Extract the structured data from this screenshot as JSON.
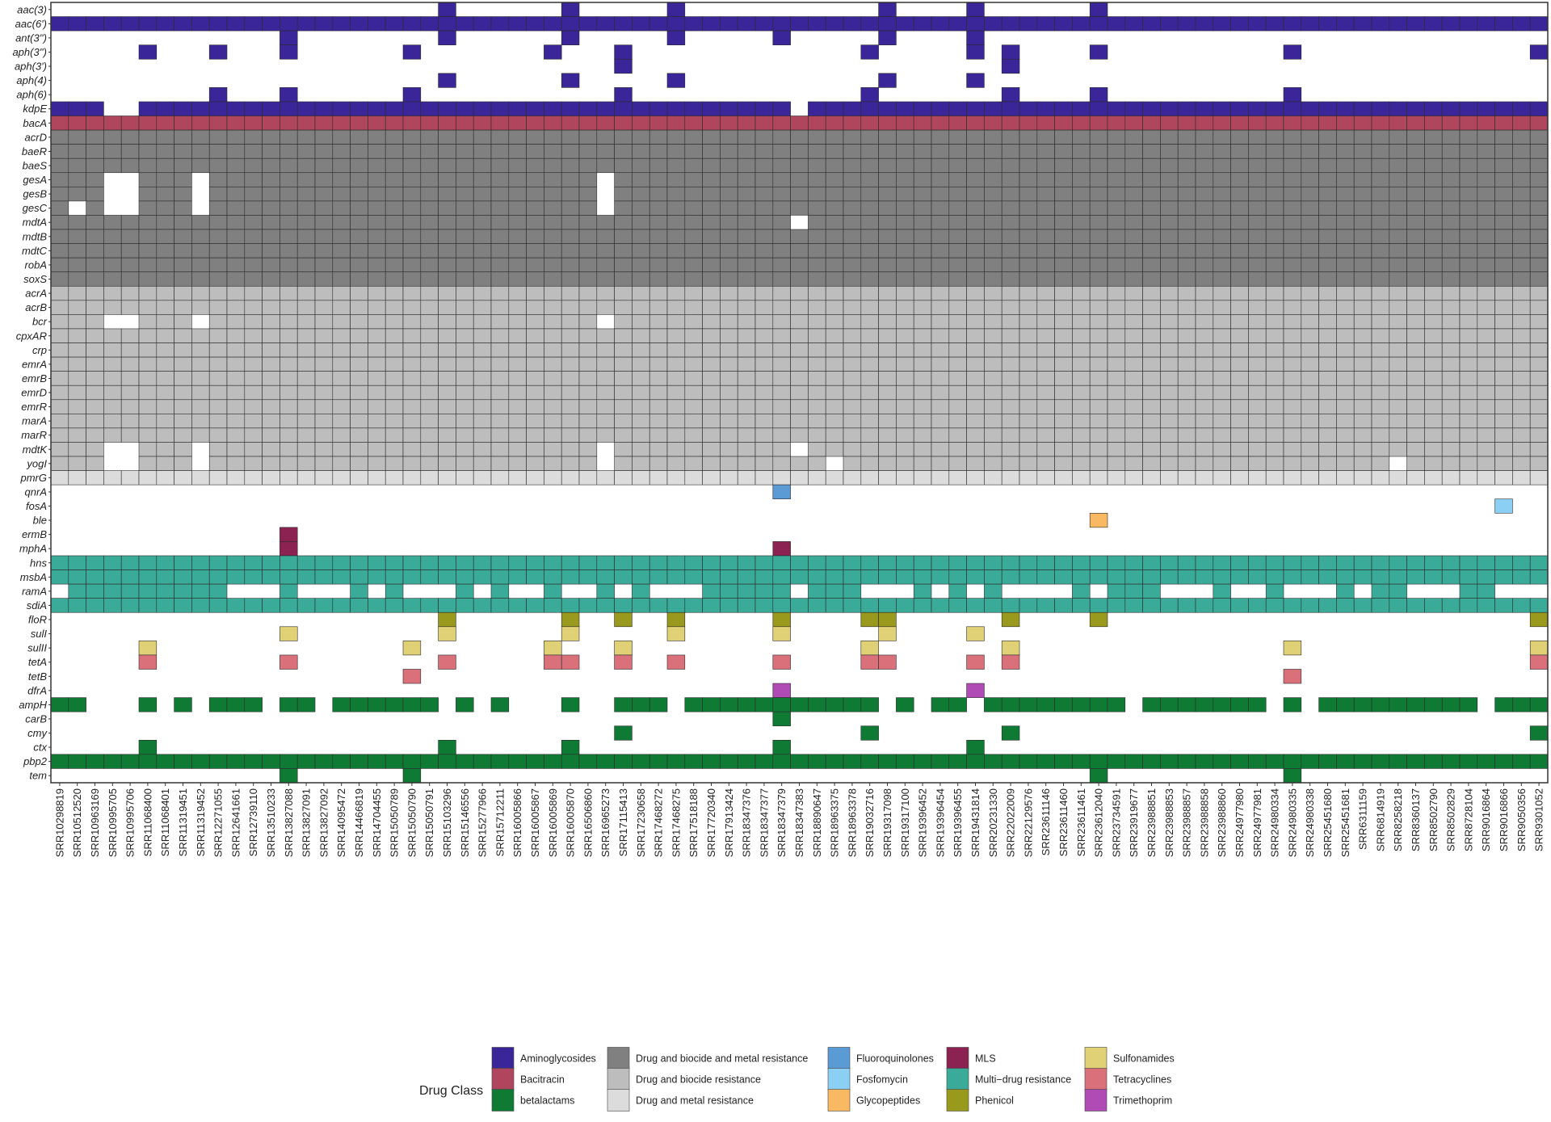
{
  "chart_data": {
    "type": "heatmap",
    "title": "",
    "xlabel": "",
    "ylabel": "",
    "grid": true,
    "samples": [
      "SRR10298819",
      "SRR10512520",
      "SRR10963169",
      "SRR10995705",
      "SRR10995706",
      "SRR11068400",
      "SRR11068401",
      "SRR11319451",
      "SRR11319452",
      "SRR12271055",
      "SRR12641661",
      "SRR12739110",
      "SRR13510233",
      "SRR13827088",
      "SRR13827091",
      "SRR13827092",
      "SRR14095472",
      "SRR14466819",
      "SRR14704455",
      "SRR15050789",
      "SRR15050790",
      "SRR15050791",
      "SRR15103296",
      "SRR15146556",
      "SRR15277966",
      "SRR15712211",
      "SRR16005866",
      "SRR16005867",
      "SRR16005869",
      "SRR16005870",
      "SRR16506860",
      "SRR16965273",
      "SRR17115413",
      "SRR17230658",
      "SRR17468272",
      "SRR17468275",
      "SRR17518188",
      "SRR17720340",
      "SRR17913424",
      "SRR18347376",
      "SRR18347377",
      "SRR18347379",
      "SRR18347383",
      "SRR18890647",
      "SRR18963375",
      "SRR18963378",
      "SRR19032716",
      "SRR19317098",
      "SRR19317100",
      "SRR19396452",
      "SRR19396454",
      "SRR19396455",
      "SRR19431814",
      "SRR20231330",
      "SRR22022009",
      "SRR22129576",
      "SRR23611146",
      "SRR23611460",
      "SRR23611461",
      "SRR23612040",
      "SRR23734591",
      "SRR23919677",
      "SRR23988851",
      "SRR23988853",
      "SRR23988857",
      "SRR23988858",
      "SRR23988860",
      "SRR24977980",
      "SRR24977981",
      "SRR24980334",
      "SRR24980335",
      "SRR24980338",
      "SRR25451680",
      "SRR25451681",
      "SRR6311159",
      "SRR6814919",
      "SRR8258218",
      "SRR8360137",
      "SRR8502790",
      "SRR8502829",
      "SRR8728104",
      "SRR9016864",
      "SRR9016866",
      "SRR9050356",
      "SRR9301052"
    ],
    "genes": [
      {
        "name": "aac(3)",
        "class": "Aminoglycosides",
        "present": [
          22,
          29,
          35,
          47,
          52,
          59
        ]
      },
      {
        "name": "aac(6')",
        "class": "Aminoglycosides",
        "present": "all"
      },
      {
        "name": "ant(3'')",
        "class": "Aminoglycosides",
        "present": [
          13,
          22,
          29,
          35,
          41,
          47,
          52
        ]
      },
      {
        "name": "aph(3'')",
        "class": "Aminoglycosides",
        "present": [
          5,
          9,
          13,
          20,
          28,
          32,
          46,
          52,
          54,
          59,
          70,
          84
        ]
      },
      {
        "name": "aph(3')",
        "class": "Aminoglycosides",
        "present": [
          32,
          54
        ]
      },
      {
        "name": "aph(4)",
        "class": "Aminoglycosides",
        "present": [
          22,
          29,
          35,
          47,
          52
        ]
      },
      {
        "name": "aph(6)",
        "class": "Aminoglycosides",
        "present": [
          9,
          13,
          20,
          32,
          46,
          54,
          59,
          70
        ]
      },
      {
        "name": "kdpE",
        "class": "Aminoglycosides",
        "present": "all",
        "absent": [
          3,
          4,
          42
        ]
      },
      {
        "name": "bacA",
        "class": "Bacitracin",
        "present": "all"
      },
      {
        "name": "acrD",
        "class": "Drug and biocide and metal resistance",
        "present": "all"
      },
      {
        "name": "baeR",
        "class": "Drug and biocide and metal resistance",
        "present": "all"
      },
      {
        "name": "baeS",
        "class": "Drug and biocide and metal resistance",
        "present": "all"
      },
      {
        "name": "gesA",
        "class": "Drug and biocide and metal resistance",
        "present": "all",
        "absent": [
          3,
          4,
          8,
          31
        ]
      },
      {
        "name": "gesB",
        "class": "Drug and biocide and metal resistance",
        "present": "all",
        "absent": [
          3,
          4,
          8,
          31
        ]
      },
      {
        "name": "gesC",
        "class": "Drug and biocide and metal resistance",
        "present": "all",
        "absent": [
          1,
          3,
          4,
          8,
          31
        ]
      },
      {
        "name": "mdtA",
        "class": "Drug and biocide and metal resistance",
        "present": "all",
        "absent": [
          42
        ]
      },
      {
        "name": "mdtB",
        "class": "Drug and biocide and metal resistance",
        "present": "all"
      },
      {
        "name": "mdtC",
        "class": "Drug and biocide and metal resistance",
        "present": "all"
      },
      {
        "name": "robA",
        "class": "Drug and biocide and metal resistance",
        "present": "all"
      },
      {
        "name": "soxS",
        "class": "Drug and biocide and metal resistance",
        "present": "all"
      },
      {
        "name": "acrA",
        "class": "Drug and biocide resistance",
        "present": "all"
      },
      {
        "name": "acrB",
        "class": "Drug and biocide resistance",
        "present": "all"
      },
      {
        "name": "bcr",
        "class": "Drug and biocide resistance",
        "present": "all",
        "absent": [
          3,
          4,
          8,
          31
        ]
      },
      {
        "name": "cpxAR",
        "class": "Drug and biocide resistance",
        "present": "all"
      },
      {
        "name": "crp",
        "class": "Drug and biocide resistance",
        "present": "all"
      },
      {
        "name": "emrA",
        "class": "Drug and biocide resistance",
        "present": "all"
      },
      {
        "name": "emrB",
        "class": "Drug and biocide resistance",
        "present": "all"
      },
      {
        "name": "emrD",
        "class": "Drug and biocide resistance",
        "present": "all"
      },
      {
        "name": "emrR",
        "class": "Drug and biocide resistance",
        "present": "all"
      },
      {
        "name": "marA",
        "class": "Drug and biocide resistance",
        "present": "all"
      },
      {
        "name": "marR",
        "class": "Drug and biocide resistance",
        "present": "all"
      },
      {
        "name": "mdtK",
        "class": "Drug and biocide resistance",
        "present": "all",
        "absent": [
          3,
          4,
          8,
          31,
          42
        ]
      },
      {
        "name": "yogI",
        "class": "Drug and biocide resistance",
        "present": "all",
        "absent": [
          3,
          4,
          8,
          31,
          44,
          76
        ]
      },
      {
        "name": "pmrG",
        "class": "Drug and metal resistance",
        "present": "all"
      },
      {
        "name": "qnrA",
        "class": "Fluoroquinolones",
        "present": [
          41
        ]
      },
      {
        "name": "fosA",
        "class": "Fosfomycin",
        "present": [
          82
        ]
      },
      {
        "name": "ble",
        "class": "Glycopeptides",
        "present": [
          59
        ]
      },
      {
        "name": "ermB",
        "class": "MLS",
        "present": [
          13
        ]
      },
      {
        "name": "mphA",
        "class": "MLS",
        "present": [
          13,
          41
        ]
      },
      {
        "name": "hns",
        "class": "Multi-drug resistance",
        "present": "all"
      },
      {
        "name": "msbA",
        "class": "Multi-drug resistance",
        "present": "all"
      },
      {
        "name": "ramA",
        "class": "Multi-drug resistance",
        "present": [
          1,
          2,
          3,
          4,
          5,
          6,
          7,
          8,
          9,
          13,
          17,
          19,
          23,
          25,
          28,
          31,
          33,
          37,
          38,
          39,
          40,
          41,
          43,
          44,
          45,
          49,
          51,
          53,
          58,
          60,
          61,
          62,
          66,
          69,
          73,
          75,
          76,
          80,
          81
        ],
        "absent_note": "absent elsewhere"
      },
      {
        "name": "sdiA",
        "class": "Multi-drug resistance",
        "present": "all"
      },
      {
        "name": "floR",
        "class": "Phenicol",
        "present": [
          22,
          29,
          32,
          35,
          41,
          46,
          47,
          54,
          59,
          84
        ]
      },
      {
        "name": "sulI",
        "class": "Sulfonamides",
        "present": [
          13,
          22,
          29,
          35,
          41,
          47,
          52
        ]
      },
      {
        "name": "sulII",
        "class": "Sulfonamides",
        "present": [
          5,
          20,
          28,
          32,
          46,
          54,
          70,
          84
        ]
      },
      {
        "name": "tetA",
        "class": "Tetracyclines",
        "present": [
          5,
          13,
          22,
          28,
          29,
          32,
          35,
          41,
          46,
          47,
          52,
          54,
          84
        ]
      },
      {
        "name": "tetB",
        "class": "Tetracyclines",
        "present": [
          20,
          70
        ]
      },
      {
        "name": "dfrA",
        "class": "Trimethoprim",
        "present": [
          41,
          52
        ]
      },
      {
        "name": "ampH",
        "class": "betalactams",
        "present": [
          0,
          1,
          5,
          7,
          9,
          10,
          11,
          13,
          14,
          16,
          17,
          18,
          19,
          20,
          21,
          23,
          25,
          29,
          32,
          33,
          34,
          36,
          37,
          38,
          39,
          40,
          41,
          42,
          43,
          44,
          45,
          46,
          48,
          50,
          51,
          53,
          54,
          55,
          56,
          57,
          58,
          59,
          60,
          62,
          63,
          64,
          65,
          66,
          67,
          68,
          70,
          72,
          73,
          74,
          75,
          76,
          77,
          78,
          79,
          80,
          82,
          83,
          84
        ]
      },
      {
        "name": "carB",
        "class": "betalactams",
        "present": [
          41
        ]
      },
      {
        "name": "cmy",
        "class": "betalactams",
        "present": [
          32,
          46,
          54,
          84
        ]
      },
      {
        "name": "ctx",
        "class": "betalactams",
        "present": [
          5,
          22,
          29,
          41,
          52
        ]
      },
      {
        "name": "pbp2",
        "class": "betalactams",
        "present": "all"
      },
      {
        "name": "tem",
        "class": "betalactams",
        "present": [
          13,
          20,
          59,
          70
        ]
      }
    ],
    "legend": {
      "title": "Drug Class",
      "placement": "bottom",
      "entries": [
        {
          "label": "Aminoglycosides",
          "color": "#3a2699"
        },
        {
          "label": "Bacitracin",
          "color": "#b0455e"
        },
        {
          "label": "betalactams",
          "color": "#0f7a34"
        },
        {
          "label": "Drug and biocide and metal resistance",
          "color": "#808080"
        },
        {
          "label": "Drug and biocide resistance",
          "color": "#bdbdbd"
        },
        {
          "label": "Drug and metal resistance",
          "color": "#dcdcdc"
        },
        {
          "label": "Fluoroquinolones",
          "color": "#5b9bd5"
        },
        {
          "label": "Fosfomycin",
          "color": "#8ccff4"
        },
        {
          "label": "Glycopeptides",
          "color": "#f9b962"
        },
        {
          "label": "MLS",
          "color": "#8b2252"
        },
        {
          "label": "Multi−drug resistance",
          "color": "#3aab98"
        },
        {
          "label": "Phenicol",
          "color": "#999a1d"
        },
        {
          "label": "Sulfonamides",
          "color": "#e0d176"
        },
        {
          "label": "Tetracyclines",
          "color": "#d9707a"
        },
        {
          "label": "Trimethoprim",
          "color": "#b04ab5"
        }
      ]
    }
  }
}
